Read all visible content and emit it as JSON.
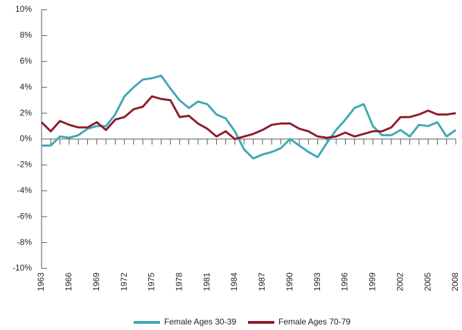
{
  "chart_data": {
    "type": "line",
    "x": [
      1963,
      1964,
      1965,
      1966,
      1967,
      1968,
      1969,
      1970,
      1971,
      1972,
      1973,
      1974,
      1975,
      1976,
      1977,
      1978,
      1979,
      1980,
      1981,
      1982,
      1983,
      1984,
      1985,
      1986,
      1987,
      1988,
      1989,
      1990,
      1991,
      1992,
      1993,
      1994,
      1995,
      1996,
      1997,
      1998,
      1999,
      2000,
      2001,
      2002,
      2003,
      2004,
      2005,
      2006,
      2007,
      2008
    ],
    "series": [
      {
        "name": "Female Ages 30-39",
        "color": "#3fa8b4",
        "values": [
          -0.5,
          -0.5,
          0.2,
          0.1,
          0.3,
          0.8,
          1.0,
          1.0,
          1.9,
          3.3,
          4.0,
          4.6,
          4.7,
          4.9,
          3.9,
          3.0,
          2.4,
          2.9,
          2.7,
          1.9,
          1.6,
          0.6,
          -0.8,
          -1.5,
          -1.2,
          -1.0,
          -0.7,
          0.0,
          -0.5,
          -1.0,
          -1.4,
          -0.3,
          0.7,
          1.5,
          2.4,
          2.7,
          1.0,
          0.3,
          0.3,
          0.7,
          0.2,
          1.1,
          1.0,
          1.3,
          0.2,
          0.7
        ]
      },
      {
        "name": "Female Ages 70-79",
        "color": "#8c1c2c",
        "values": [
          1.3,
          0.6,
          1.4,
          1.1,
          0.9,
          0.9,
          1.3,
          0.7,
          1.5,
          1.7,
          2.3,
          2.5,
          3.3,
          3.1,
          3.0,
          1.7,
          1.8,
          1.2,
          0.8,
          0.2,
          0.6,
          0.0,
          0.2,
          0.4,
          0.7,
          1.1,
          1.2,
          1.2,
          0.8,
          0.6,
          0.2,
          0.1,
          0.2,
          0.5,
          0.2,
          0.4,
          0.6,
          0.6,
          0.9,
          1.7,
          1.7,
          1.9,
          2.2,
          1.9,
          1.9,
          2.0
        ]
      }
    ],
    "xlim": [
      1963,
      2008
    ],
    "xticks": [
      1963,
      1966,
      1969,
      1972,
      1975,
      1978,
      1981,
      1984,
      1987,
      1990,
      1993,
      1996,
      1999,
      2002,
      2005,
      2008
    ],
    "ylim": [
      -10,
      10
    ],
    "yticks": [
      {
        "value": -10,
        "label": "-10%"
      },
      {
        "value": -8,
        "label": "-8%"
      },
      {
        "value": -6,
        "label": "-6%"
      },
      {
        "value": -4,
        "label": "-4%"
      },
      {
        "value": -2,
        "label": "-2%"
      },
      {
        "value": 0,
        "label": "0%"
      },
      {
        "value": 2,
        "label": "2%"
      },
      {
        "value": 4,
        "label": "4%"
      },
      {
        "value": 6,
        "label": "6%"
      },
      {
        "value": 8,
        "label": "8%"
      },
      {
        "value": 10,
        "label": "10%"
      }
    ],
    "grid": false
  }
}
